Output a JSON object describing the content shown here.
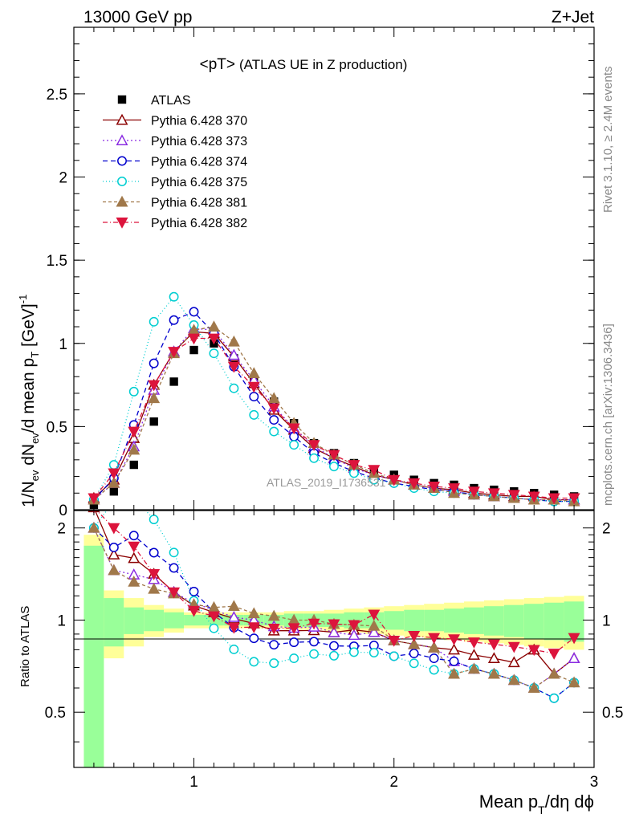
{
  "header": {
    "left": "13000 GeV pp",
    "right": "Z+Jet"
  },
  "side_text": {
    "rivet": "Rivet 3.1.10, ≥ 2.4M events",
    "mcplots": "mcplots.cern.ch [arXiv:1306.3436]"
  },
  "chart_data": {
    "type": "scatter",
    "title_main": "<pT>",
    "title_sub": "(ATLAS UE in Z production)",
    "watermark": "ATLAS_2019_I1736531",
    "xlabel": "Mean p_T/dη dφ",
    "ylabel_main": "1/N_ev dN_ev/d mean p_T [GeV]^-1",
    "ylabel_ratio": "Ratio to ATLAS",
    "xlim": [
      0.4,
      3.0
    ],
    "ylim_main": [
      0,
      2.9
    ],
    "ylim_ratio": [
      0.33,
      2.28
    ],
    "x_ticks": [
      "1",
      "2",
      "3"
    ],
    "y_ticks_main": [
      "0",
      "0.5",
      "1",
      "1.5",
      "2",
      "2.5"
    ],
    "y_ticks_ratio": [
      "0.5",
      "1",
      "2"
    ],
    "x": [
      0.5,
      0.6,
      0.7,
      0.8,
      0.9,
      1.0,
      1.1,
      1.2,
      1.3,
      1.4,
      1.5,
      1.6,
      1.7,
      1.8,
      1.9,
      2.0,
      2.1,
      2.2,
      2.3,
      2.4,
      2.5,
      2.6,
      2.7,
      2.8,
      2.9
    ],
    "band": {
      "stat_frac": [
        0.75,
        0.18,
        0.1,
        0.08,
        0.06,
        0.04,
        0.04,
        0.04,
        0.04,
        0.04,
        0.05,
        0.05,
        0.05,
        0.06,
        0.06,
        0.07,
        0.08,
        0.08,
        0.09,
        0.1,
        0.11,
        0.12,
        0.13,
        0.14,
        0.15
      ],
      "total_frac": [
        0.9,
        0.25,
        0.18,
        0.12,
        0.09,
        0.06,
        0.06,
        0.06,
        0.06,
        0.06,
        0.07,
        0.07,
        0.08,
        0.09,
        0.1,
        0.11,
        0.12,
        0.13,
        0.14,
        0.15,
        0.16,
        0.17,
        0.18,
        0.19,
        0.2
      ]
    },
    "series": [
      {
        "name": "ATLAS",
        "color": "#000000",
        "marker": "square",
        "dash": "",
        "values": [
          0.03,
          0.11,
          0.27,
          0.53,
          0.77,
          0.96,
          1.0,
          0.91,
          0.78,
          0.65,
          0.52,
          0.4,
          0.34,
          0.28,
          0.23,
          0.21,
          0.18,
          0.16,
          0.15,
          0.13,
          0.12,
          0.11,
          0.1,
          0.09,
          0.08
        ]
      },
      {
        "name": "Pythia 6.428 370",
        "color": "#8b0000",
        "marker": "tri-up-open",
        "dash": "",
        "values": [
          0.07,
          0.18,
          0.43,
          0.75,
          0.95,
          1.07,
          1.06,
          0.92,
          0.76,
          0.6,
          0.48,
          0.37,
          0.31,
          0.26,
          0.21,
          0.18,
          0.15,
          0.13,
          0.12,
          0.1,
          0.09,
          0.08,
          0.08,
          0.06,
          0.06
        ]
      },
      {
        "name": "Pythia 6.428 373",
        "color": "#8a2be2",
        "marker": "tri-up-open",
        "dash": "2,3",
        "values": [
          0.06,
          0.16,
          0.38,
          0.72,
          0.95,
          1.09,
          1.08,
          0.93,
          0.78,
          0.62,
          0.49,
          0.38,
          0.31,
          0.25,
          0.21,
          0.18,
          0.15,
          0.13,
          0.11,
          0.09,
          0.08,
          0.07,
          0.06,
          0.06,
          0.06
        ]
      },
      {
        "name": "Pythia 6.428 374",
        "color": "#0000cd",
        "marker": "circle-open",
        "dash": "6,4",
        "values": [
          0.06,
          0.19,
          0.51,
          0.88,
          1.14,
          1.19,
          1.06,
          0.86,
          0.68,
          0.54,
          0.44,
          0.34,
          0.28,
          0.23,
          0.19,
          0.16,
          0.14,
          0.12,
          0.11,
          0.09,
          0.08,
          0.07,
          0.06,
          0.05,
          0.05
        ]
      },
      {
        "name": "Pythia 6.428 375",
        "color": "#00ced1",
        "marker": "circle-open",
        "dash": "1,3",
        "values": [
          0.06,
          0.27,
          0.71,
          1.13,
          1.28,
          1.11,
          0.94,
          0.73,
          0.57,
          0.47,
          0.39,
          0.31,
          0.26,
          0.22,
          0.18,
          0.16,
          0.13,
          0.11,
          0.1,
          0.09,
          0.08,
          0.07,
          0.06,
          0.05,
          0.05
        ]
      },
      {
        "name": "Pythia 6.428 381",
        "color": "#a0784a",
        "marker": "tri-up-filled",
        "dash": "4,3",
        "values": [
          0.06,
          0.16,
          0.36,
          0.67,
          0.94,
          1.08,
          1.1,
          1.01,
          0.82,
          0.67,
          0.52,
          0.4,
          0.33,
          0.27,
          0.22,
          0.18,
          0.15,
          0.13,
          0.1,
          0.09,
          0.08,
          0.07,
          0.06,
          0.06,
          0.05
        ]
      },
      {
        "name": "Pythia 6.428 382",
        "color": "#dc143c",
        "marker": "tri-down-filled",
        "dash": "6,3,1,3",
        "values": [
          0.07,
          0.22,
          0.47,
          0.75,
          0.95,
          1.03,
          1.03,
          0.86,
          0.74,
          0.61,
          0.49,
          0.39,
          0.33,
          0.27,
          0.24,
          0.18,
          0.16,
          0.14,
          0.13,
          0.11,
          0.1,
          0.09,
          0.08,
          0.07,
          0.07
        ]
      }
    ]
  }
}
